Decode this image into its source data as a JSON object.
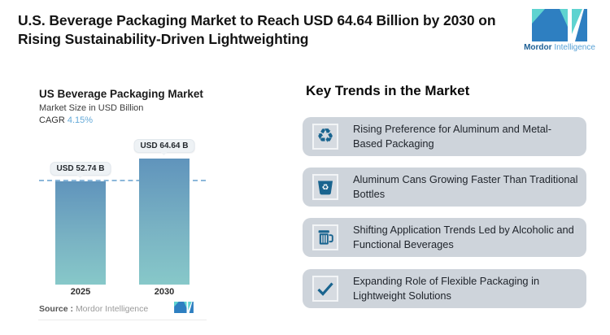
{
  "header": {
    "title_lines": [
      "U.S. Beverage Packaging Market to Reach USD 64.64 Billion by 2030 on",
      "Rising Sustainability-Driven Lightweighting"
    ],
    "logo": {
      "word1": "Mordor",
      "word2": "Intelligence"
    }
  },
  "chart_data": {
    "type": "bar",
    "title": "US Beverage Packaging Market",
    "subtitle": "Market Size in USD Billion",
    "cagr_label": "CAGR",
    "cagr_value": "4.15%",
    "categories": [
      "2025",
      "2030"
    ],
    "values": [
      52.74,
      64.64
    ],
    "bar_labels": [
      "USD 52.74 B",
      "USD 64.64 B"
    ],
    "ylim": [
      0,
      65
    ],
    "grid": false,
    "reference_line": 52.74,
    "source_label": "Source :",
    "source_value": "Mordor Intelligence"
  },
  "trends": {
    "heading": "Key Trends in the Market",
    "items": [
      {
        "icon": "recycle-icon",
        "lines": [
          "Rising Preference for Aluminum and Metal-",
          "Based Packaging"
        ]
      },
      {
        "icon": "recycle-bin-icon",
        "lines": [
          "Aluminum Cans Growing Faster Than Traditional",
          "Bottles"
        ]
      },
      {
        "icon": "beer-mug-icon",
        "lines": [
          "Shifting Application Trends Led by Alcoholic and",
          "Functional Beverages"
        ]
      },
      {
        "icon": "checkmark-icon",
        "lines": [
          "Expanding Role of Flexible Packaging in",
          "Lightweight Solutions"
        ]
      }
    ]
  },
  "colors": {
    "brand_blue": "#2e7fc1",
    "brand_teal": "#5ed3d0",
    "icon_blue": "#19648f",
    "bar_gradient_top": "#6094bc",
    "bar_gradient_bottom": "#87c8c9",
    "card_background": "#ced4db",
    "cagr_value_text": "#64a9d8",
    "dashed_line": "#8cb8da"
  }
}
